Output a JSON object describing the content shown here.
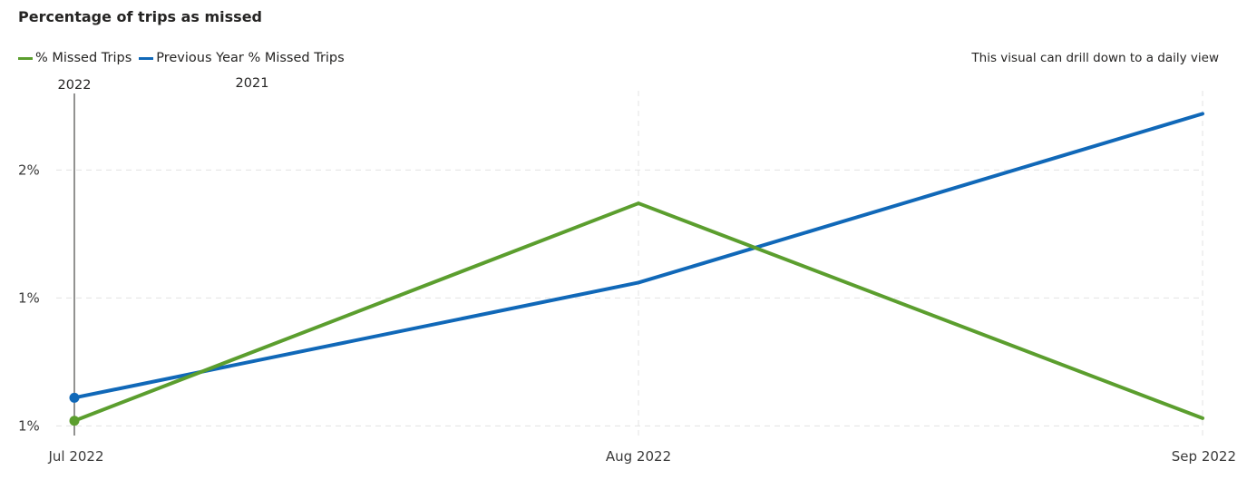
{
  "chart_data": {
    "type": "line",
    "title": "Percentage of trips as missed",
    "note": "This visual can drill down to a daily view",
    "categories": [
      "Jul 2022",
      "Aug 2022",
      "Sep 2022"
    ],
    "yaxis": {
      "ticks": [
        {
          "value": 0.9,
          "label": "1%"
        },
        {
          "value": 1.4,
          "label": "1%"
        },
        {
          "value": 1.9,
          "label": "2%"
        }
      ],
      "ylim": [
        0.88,
        2.21
      ]
    },
    "series": [
      {
        "name": "% Missed Trips",
        "color": "#5B9E2E",
        "values": [
          0.92,
          1.77,
          0.93
        ]
      },
      {
        "name": "Previous Year % Missed Trips",
        "color": "#1068B8",
        "values": [
          1.01,
          1.46,
          2.12
        ]
      }
    ],
    "annotations": [
      {
        "label": "2022",
        "category_index": 0
      },
      {
        "label": "2021",
        "category_index": 0
      }
    ],
    "grid": true,
    "legend": "top-left"
  }
}
